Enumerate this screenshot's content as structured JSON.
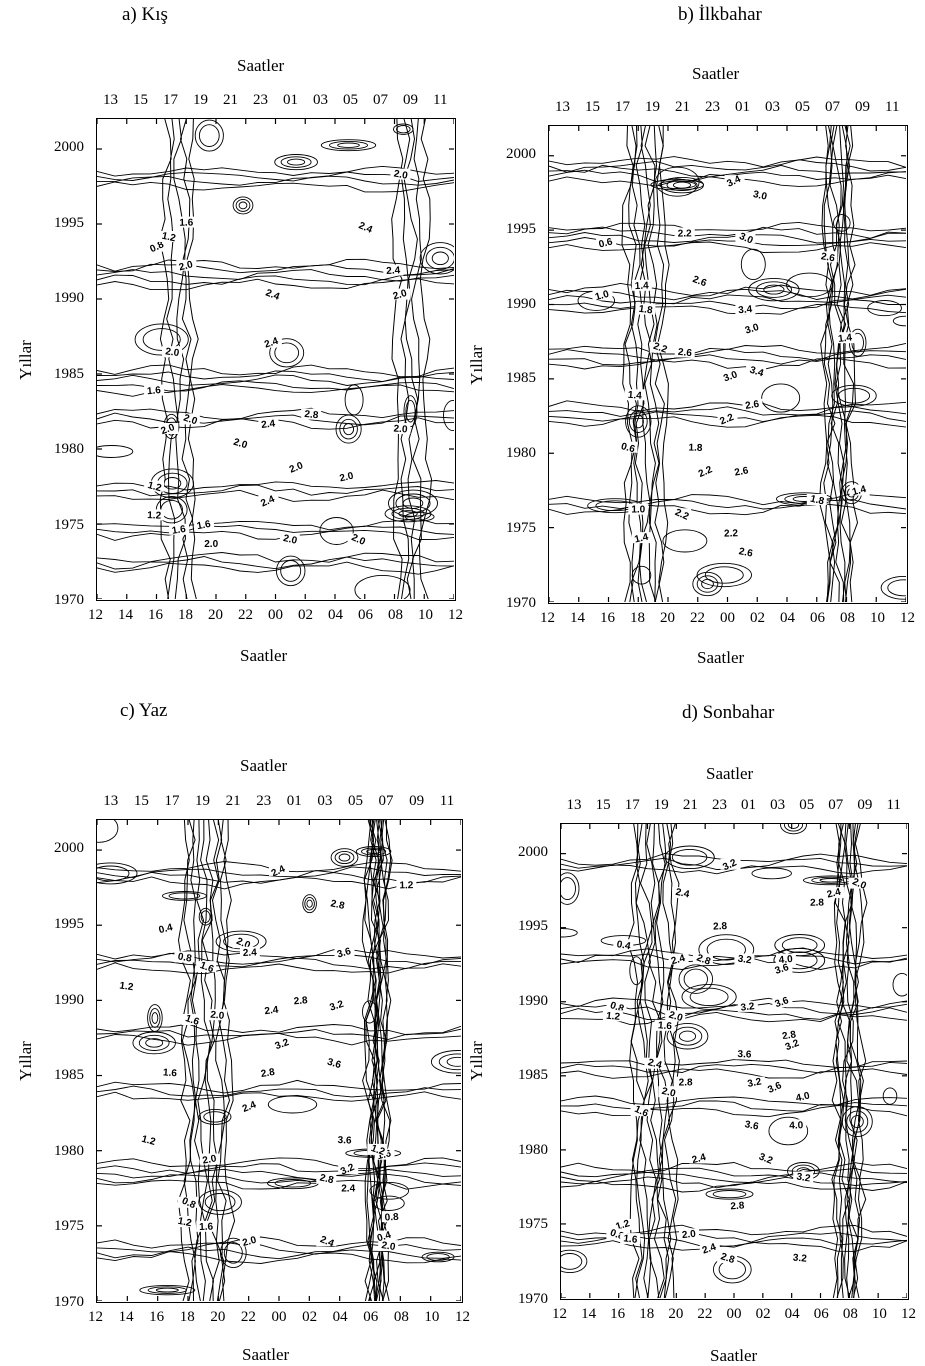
{
  "chart_data": [
    {
      "type": "contour",
      "panel_title": "a) Kış",
      "xlabel_top": "Saatler",
      "xlabel_bottom": "Saatler",
      "ylabel": "Yıllar",
      "x_ticks_bottom": [
        "12",
        "14",
        "16",
        "18",
        "20",
        "22",
        "00",
        "02",
        "04",
        "06",
        "08",
        "10",
        "12"
      ],
      "x_ticks_top": [
        "13",
        "15",
        "17",
        "19",
        "21",
        "23",
        "01",
        "03",
        "05",
        "07",
        "09",
        "11"
      ],
      "y_ticks": [
        "1970",
        "1975",
        "1980",
        "1985",
        "1990",
        "1995",
        "2000"
      ],
      "ylim": [
        1970,
        2002
      ],
      "contour_labels": [
        "0.8",
        "1.2",
        "1.6",
        "2.0",
        "2.4",
        "2.0",
        "2.4",
        "2.0",
        "2.4",
        "2.0",
        "1.6",
        "2.4",
        "2.0",
        "2.8",
        "2.4",
        "2.0",
        "2.0",
        "2.0",
        "1.6",
        "2.0",
        "1.2",
        "1.2",
        "1.6",
        "2.4",
        "2.0",
        "2.0",
        "2.0",
        "2.0"
      ]
    },
    {
      "type": "contour",
      "panel_title": "b) İlkbahar",
      "xlabel_top": "Saatler",
      "xlabel_bottom": "Saatler",
      "ylabel": "Yıllar",
      "x_ticks_bottom": [
        "12",
        "14",
        "16",
        "18",
        "20",
        "22",
        "00",
        "02",
        "04",
        "06",
        "08",
        "10",
        "12"
      ],
      "x_ticks_top": [
        "13",
        "15",
        "17",
        "19",
        "21",
        "23",
        "01",
        "03",
        "05",
        "07",
        "09",
        "11"
      ],
      "y_ticks": [
        "1970",
        "1975",
        "1980",
        "1985",
        "1990",
        "1995",
        "2000"
      ],
      "ylim": [
        1970,
        2002
      ],
      "contour_labels": [
        "3.4",
        "3.0",
        "2.2",
        "0.6",
        "3.0",
        "2.6",
        "1.4",
        "1.0",
        "2.6",
        "1.8",
        "3.4",
        "3.0",
        "2.2",
        "2.6",
        "1.4",
        "3.0",
        "3.4",
        "1.4",
        "2.6",
        "2.2",
        "0.6",
        "1.8",
        "2.6",
        "2.2",
        "1.8",
        "1.0",
        "1.4",
        "2.2",
        "2.6",
        "2.2",
        "1.4"
      ]
    },
    {
      "type": "contour",
      "panel_title": "c) Yaz",
      "xlabel_top": "Saatler",
      "xlabel_bottom": "Saatler",
      "ylabel": "Yıllar",
      "x_ticks_bottom": [
        "12",
        "14",
        "16",
        "18",
        "20",
        "22",
        "00",
        "02",
        "04",
        "06",
        "08",
        "10",
        "12"
      ],
      "x_ticks_top": [
        "13",
        "15",
        "17",
        "19",
        "21",
        "23",
        "01",
        "03",
        "05",
        "07",
        "09",
        "11"
      ],
      "y_ticks": [
        "1970",
        "1975",
        "1980",
        "1985",
        "1990",
        "1995",
        "2000"
      ],
      "ylim": [
        1970,
        2002
      ],
      "contour_labels": [
        "2.4",
        "2.8",
        "1.2",
        "0.4",
        "2.0",
        "0.8",
        "2.4",
        "3.6",
        "1.6",
        "1.2",
        "2.8",
        "3.2",
        "1.6",
        "2.0",
        "2.4",
        "3.2",
        "3.6",
        "1.6",
        "2.8",
        "2.4",
        "1.2",
        "3.6",
        "2.0",
        "3.2",
        "2.8",
        "2.4",
        "1.6",
        "0.8",
        "1.2",
        "1.6",
        "2.0",
        "2.4",
        "2.0",
        "0.8",
        "0.4",
        "1.2"
      ]
    },
    {
      "type": "contour",
      "panel_title": "d) Sonbahar",
      "xlabel_top": "Saatler",
      "xlabel_bottom": "Saatler",
      "ylabel": "Yıllar",
      "x_ticks_bottom": [
        "12",
        "14",
        "16",
        "18",
        "20",
        "22",
        "00",
        "02",
        "04",
        "06",
        "08",
        "10",
        "12"
      ],
      "x_ticks_top": [
        "13",
        "15",
        "17",
        "19",
        "21",
        "23",
        "01",
        "03",
        "05",
        "07",
        "09",
        "11"
      ],
      "y_ticks": [
        "1970",
        "1975",
        "1980",
        "1985",
        "1990",
        "1995",
        "2000"
      ],
      "ylim": [
        1970,
        2002
      ],
      "contour_labels": [
        "3.2",
        "2.4",
        "2.8",
        "2.4",
        "2.0",
        "0.4",
        "2.8",
        "2.4",
        "2.8",
        "3.2",
        "4.0",
        "3.6",
        "0.8",
        "1.2",
        "3.2",
        "3.6",
        "2.0",
        "1.6",
        "2.8",
        "3.2",
        "2.4",
        "3.6",
        "3.2",
        "3.6",
        "2.0",
        "2.8",
        "4.0",
        "1.6",
        "3.6",
        "4.0",
        "2.4",
        "3.2",
        "3.2",
        "2.8",
        "1.2",
        "0.8",
        "1.6",
        "2.0",
        "2.4",
        "2.8",
        "3.2"
      ]
    }
  ]
}
